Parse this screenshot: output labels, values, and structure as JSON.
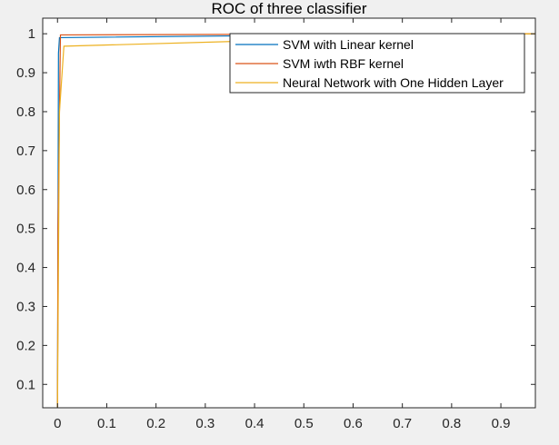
{
  "chart_data": {
    "type": "line",
    "title": "ROC of three classifier",
    "xlabel": "",
    "ylabel": "",
    "xlim": [
      -0.03,
      0.97
    ],
    "ylim": [
      0.04,
      1.04
    ],
    "xticks": [
      0,
      0.1,
      0.2,
      0.3,
      0.4,
      0.5,
      0.6,
      0.7,
      0.8,
      0.9
    ],
    "xtick_labels": [
      "0",
      "0.1",
      "0.2",
      "0.3",
      "0.4",
      "0.5",
      "0.6",
      "0.7",
      "0.8",
      "0.9"
    ],
    "yticks": [
      0.1,
      0.2,
      0.3,
      0.4,
      0.5,
      0.6,
      0.7,
      0.8,
      0.9,
      1
    ],
    "ytick_labels": [
      "0.1",
      "0.2",
      "0.3",
      "0.4",
      "0.5",
      "0.6",
      "0.7",
      "0.8",
      "0.9",
      "1"
    ],
    "grid": false,
    "legend_position": "top-right",
    "series": [
      {
        "name": "SVM with Linear kernel",
        "color": "#0072bd",
        "x": [
          0,
          0.002,
          0.004,
          0.4,
          1
        ],
        "y": [
          0,
          0.95,
          0.99,
          0.995,
          1
        ]
      },
      {
        "name": "SVM iwth RBF kernel",
        "color": "#d95319",
        "x": [
          0,
          0.001,
          0.006,
          0.5,
          1
        ],
        "y": [
          0,
          0.5,
          0.997,
          0.999,
          1
        ]
      },
      {
        "name": "Neural Network with One Hidden Layer",
        "color": "#edb120",
        "x": [
          0,
          0.004,
          0.013,
          0.35,
          0.7,
          1
        ],
        "y": [
          0,
          0.8,
          0.968,
          0.98,
          0.995,
          1
        ]
      }
    ]
  }
}
